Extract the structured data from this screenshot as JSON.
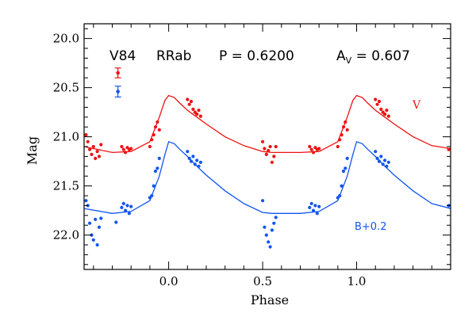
{
  "chart_data": {
    "type": "scatter",
    "xlabel": "Phase",
    "ylabel": "Mag",
    "xlim": [
      -0.45,
      1.5
    ],
    "ylim": [
      22.35,
      19.85
    ],
    "y_inverted": true,
    "x_major_ticks": [
      0.0,
      0.5,
      1.0
    ],
    "x_tick_labels": [
      "0.0",
      "0.5",
      "1.0"
    ],
    "y_major_ticks": [
      20.0,
      20.5,
      21.0,
      21.5,
      22.0
    ],
    "y_tick_labels": [
      "20.0",
      "20.5",
      "21.0",
      "21.5",
      "22.0"
    ],
    "grid": false,
    "header": {
      "star": "V84",
      "type": "RRab",
      "period": "P = 0.6200",
      "amp_label": "A",
      "amp_sub": "V",
      "amp_value": " = 0.607"
    },
    "error_bars": [
      {
        "series": "V",
        "x": -0.27,
        "y": 20.35,
        "err": 0.05
      },
      {
        "series": "B+0.2",
        "x": -0.27,
        "y": 20.54,
        "err": 0.055
      }
    ],
    "series": [
      {
        "name": "V",
        "label_position": "right",
        "color": "#ee1111",
        "template": {
          "x": [
            -0.45,
            -0.3,
            -0.2,
            -0.1,
            -0.05,
            -0.02,
            0.0,
            0.03,
            0.06,
            0.1,
            0.15,
            0.2,
            0.3,
            0.4,
            0.5,
            0.55,
            0.6,
            0.7,
            0.8,
            0.9,
            0.95,
            0.98,
            1.0,
            1.03,
            1.06,
            1.1,
            1.15,
            1.2,
            1.3,
            1.4,
            1.5
          ],
          "y": [
            21.1,
            21.16,
            21.15,
            21.05,
            20.8,
            20.63,
            20.58,
            20.6,
            20.66,
            20.73,
            20.8,
            20.87,
            21.0,
            21.09,
            21.15,
            21.16,
            21.16,
            21.16,
            21.15,
            21.05,
            20.8,
            20.63,
            20.58,
            20.6,
            20.66,
            20.73,
            20.8,
            20.87,
            21.0,
            21.09,
            21.12
          ]
        },
        "points": [
          {
            "x": -0.44,
            "y": 20.98
          },
          {
            "x": -0.43,
            "y": 21.05
          },
          {
            "x": -0.42,
            "y": 21.13
          },
          {
            "x": -0.41,
            "y": 21.18
          },
          {
            "x": -0.4,
            "y": 21.1
          },
          {
            "x": -0.39,
            "y": 21.22
          },
          {
            "x": -0.38,
            "y": 21.15
          },
          {
            "x": -0.37,
            "y": 21.2
          },
          {
            "x": -0.36,
            "y": 21.08
          },
          {
            "x": -0.25,
            "y": 21.1
          },
          {
            "x": -0.24,
            "y": 21.13
          },
          {
            "x": -0.23,
            "y": 21.16
          },
          {
            "x": -0.22,
            "y": 21.11
          },
          {
            "x": -0.21,
            "y": 21.13
          },
          {
            "x": -0.2,
            "y": 21.12
          },
          {
            "x": -0.1,
            "y": 21.1
          },
          {
            "x": -0.09,
            "y": 21.03
          },
          {
            "x": -0.08,
            "y": 20.98
          },
          {
            "x": -0.07,
            "y": 20.9
          },
          {
            "x": -0.06,
            "y": 20.85
          },
          {
            "x": -0.05,
            "y": 20.93
          },
          {
            "x": 0.1,
            "y": 20.62
          },
          {
            "x": 0.11,
            "y": 20.67
          },
          {
            "x": 0.12,
            "y": 20.64
          },
          {
            "x": 0.13,
            "y": 20.72
          },
          {
            "x": 0.14,
            "y": 20.75
          },
          {
            "x": 0.15,
            "y": 20.77
          },
          {
            "x": 0.16,
            "y": 20.73
          },
          {
            "x": 0.17,
            "y": 20.79
          },
          {
            "x": 0.5,
            "y": 21.05
          },
          {
            "x": 0.51,
            "y": 21.12
          },
          {
            "x": 0.52,
            "y": 21.18
          },
          {
            "x": 0.53,
            "y": 21.14
          },
          {
            "x": 0.54,
            "y": 21.1
          },
          {
            "x": 0.55,
            "y": 21.26
          },
          {
            "x": 0.56,
            "y": 21.2
          },
          {
            "x": 0.57,
            "y": 21.1
          },
          {
            "x": 0.75,
            "y": 21.1
          },
          {
            "x": 0.76,
            "y": 21.13
          },
          {
            "x": 0.77,
            "y": 21.16
          },
          {
            "x": 0.78,
            "y": 21.11
          },
          {
            "x": 0.79,
            "y": 21.13
          },
          {
            "x": 0.8,
            "y": 21.12
          },
          {
            "x": 0.9,
            "y": 21.1
          },
          {
            "x": 0.91,
            "y": 21.03
          },
          {
            "x": 0.92,
            "y": 20.98
          },
          {
            "x": 0.93,
            "y": 20.9
          },
          {
            "x": 0.94,
            "y": 20.85
          },
          {
            "x": 0.95,
            "y": 20.93
          },
          {
            "x": 1.1,
            "y": 20.62
          },
          {
            "x": 1.11,
            "y": 20.67
          },
          {
            "x": 1.12,
            "y": 20.64
          },
          {
            "x": 1.13,
            "y": 20.72
          },
          {
            "x": 1.14,
            "y": 20.75
          },
          {
            "x": 1.15,
            "y": 20.77
          },
          {
            "x": 1.16,
            "y": 20.73
          },
          {
            "x": 1.17,
            "y": 20.79
          },
          {
            "x": 1.49,
            "y": 21.13
          }
        ]
      },
      {
        "name": "B+0.2",
        "label_position": "lower-right",
        "color": "#1155ee",
        "template": {
          "x": [
            -0.45,
            -0.3,
            -0.2,
            -0.1,
            -0.05,
            -0.02,
            0.0,
            0.03,
            0.06,
            0.1,
            0.15,
            0.2,
            0.3,
            0.4,
            0.5,
            0.55,
            0.6,
            0.7,
            0.8,
            0.9,
            0.95,
            0.98,
            1.0,
            1.03,
            1.06,
            1.1,
            1.15,
            1.2,
            1.3,
            1.4,
            1.5
          ],
          "y": [
            21.73,
            21.78,
            21.76,
            21.65,
            21.4,
            21.18,
            21.05,
            21.07,
            21.13,
            21.2,
            21.3,
            21.39,
            21.55,
            21.68,
            21.77,
            21.78,
            21.78,
            21.78,
            21.76,
            21.65,
            21.4,
            21.18,
            21.05,
            21.07,
            21.13,
            21.2,
            21.3,
            21.39,
            21.55,
            21.68,
            21.73
          ]
        },
        "points": [
          {
            "x": -0.44,
            "y": 21.65
          },
          {
            "x": -0.43,
            "y": 21.7
          },
          {
            "x": -0.42,
            "y": 21.88
          },
          {
            "x": -0.41,
            "y": 22.0
          },
          {
            "x": -0.4,
            "y": 22.05
          },
          {
            "x": -0.39,
            "y": 21.84
          },
          {
            "x": -0.38,
            "y": 22.1
          },
          {
            "x": -0.37,
            "y": 21.92
          },
          {
            "x": -0.36,
            "y": 21.83
          },
          {
            "x": -0.28,
            "y": 21.87
          },
          {
            "x": -0.25,
            "y": 21.72
          },
          {
            "x": -0.24,
            "y": 21.68
          },
          {
            "x": -0.23,
            "y": 21.75
          },
          {
            "x": -0.22,
            "y": 21.7
          },
          {
            "x": -0.21,
            "y": 21.78
          },
          {
            "x": -0.2,
            "y": 21.71
          },
          {
            "x": -0.1,
            "y": 21.62
          },
          {
            "x": -0.09,
            "y": 21.6
          },
          {
            "x": -0.08,
            "y": 21.5
          },
          {
            "x": -0.07,
            "y": 21.35
          },
          {
            "x": -0.06,
            "y": 21.32
          },
          {
            "x": -0.05,
            "y": 21.22
          },
          {
            "x": 0.1,
            "y": 21.15
          },
          {
            "x": 0.11,
            "y": 21.22
          },
          {
            "x": 0.12,
            "y": 21.25
          },
          {
            "x": 0.13,
            "y": 21.2
          },
          {
            "x": 0.14,
            "y": 21.28
          },
          {
            "x": 0.15,
            "y": 21.24
          },
          {
            "x": 0.16,
            "y": 21.3
          },
          {
            "x": 0.17,
            "y": 21.26
          },
          {
            "x": 0.5,
            "y": 21.65
          },
          {
            "x": 0.51,
            "y": 21.92
          },
          {
            "x": 0.52,
            "y": 22.0
          },
          {
            "x": 0.53,
            "y": 22.07
          },
          {
            "x": 0.54,
            "y": 22.12
          },
          {
            "x": 0.55,
            "y": 21.95
          },
          {
            "x": 0.56,
            "y": 21.88
          },
          {
            "x": 0.57,
            "y": 21.82
          },
          {
            "x": 0.75,
            "y": 21.72
          },
          {
            "x": 0.76,
            "y": 21.68
          },
          {
            "x": 0.77,
            "y": 21.75
          },
          {
            "x": 0.78,
            "y": 21.7
          },
          {
            "x": 0.79,
            "y": 21.78
          },
          {
            "x": 0.8,
            "y": 21.71
          },
          {
            "x": 0.9,
            "y": 21.62
          },
          {
            "x": 0.91,
            "y": 21.6
          },
          {
            "x": 0.92,
            "y": 21.5
          },
          {
            "x": 0.93,
            "y": 21.35
          },
          {
            "x": 0.94,
            "y": 21.32
          },
          {
            "x": 0.95,
            "y": 21.22
          },
          {
            "x": 1.1,
            "y": 21.15
          },
          {
            "x": 1.11,
            "y": 21.22
          },
          {
            "x": 1.12,
            "y": 21.25
          },
          {
            "x": 1.13,
            "y": 21.2
          },
          {
            "x": 1.14,
            "y": 21.28
          },
          {
            "x": 1.15,
            "y": 21.24
          },
          {
            "x": 1.16,
            "y": 21.3
          },
          {
            "x": 1.17,
            "y": 21.26
          },
          {
            "x": 1.49,
            "y": 21.7
          }
        ]
      }
    ]
  }
}
